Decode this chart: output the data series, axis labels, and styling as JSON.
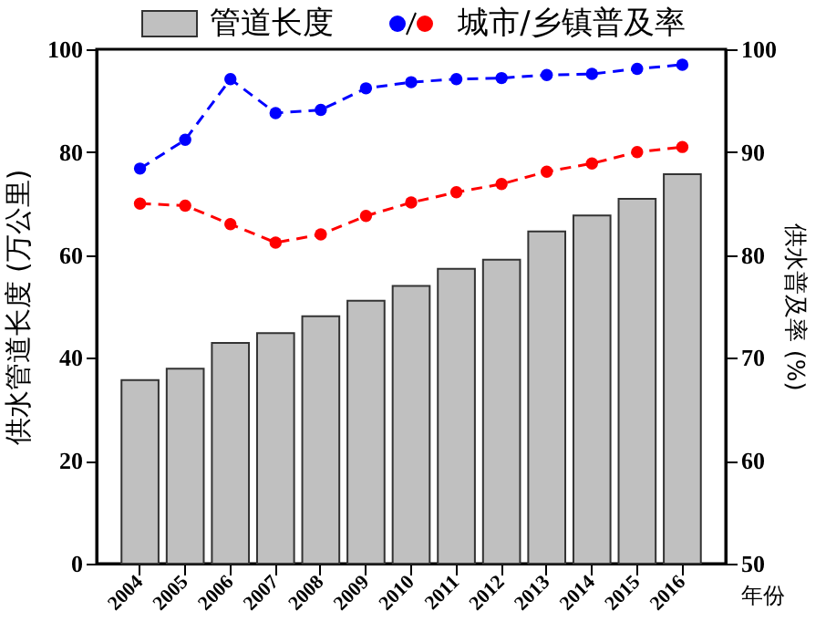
{
  "chart_data": {
    "type": "bar",
    "categories": [
      "2004",
      "2005",
      "2006",
      "2007",
      "2008",
      "2009",
      "2010",
      "2011",
      "2012",
      "2013",
      "2014",
      "2015",
      "2016"
    ],
    "series": [
      {
        "name": "管道长度",
        "color": "#c0c0c0",
        "values": [
          35.7,
          37.9,
          42.9,
          44.8,
          48.1,
          51.1,
          54.0,
          57.3,
          59.1,
          64.6,
          67.7,
          70.9,
          75.7
        ]
      },
      {
        "name": "城市/乡镇普及率",
        "type": "line",
        "axis": "y2",
        "color": "#0000ff",
        "values": [
          88.4,
          91.2,
          97.1,
          93.8,
          94.1,
          96.2,
          96.8,
          97.1,
          97.2,
          97.5,
          97.6,
          98.1,
          98.5
        ]
      },
      {
        "type": "line",
        "axis": "y2",
        "color": "#ff0000",
        "values": [
          85.0,
          84.8,
          83.0,
          81.2,
          82.0,
          83.8,
          85.1,
          86.1,
          86.9,
          88.1,
          88.9,
          90.0,
          90.5
        ]
      }
    ],
    "xlabel": "年份",
    "ylabel": "供水管道长度 (万公里)",
    "y2label": "供水普及率 (%)",
    "ylim": [
      0,
      100
    ],
    "yticks": [
      0,
      20,
      40,
      60,
      80,
      100
    ],
    "y2lim": [
      50,
      100
    ],
    "y2ticks": [
      50,
      60,
      70,
      80,
      90,
      100
    ],
    "legend": "top",
    "grid": false,
    "marker": "circle",
    "line_style": "dashed"
  }
}
